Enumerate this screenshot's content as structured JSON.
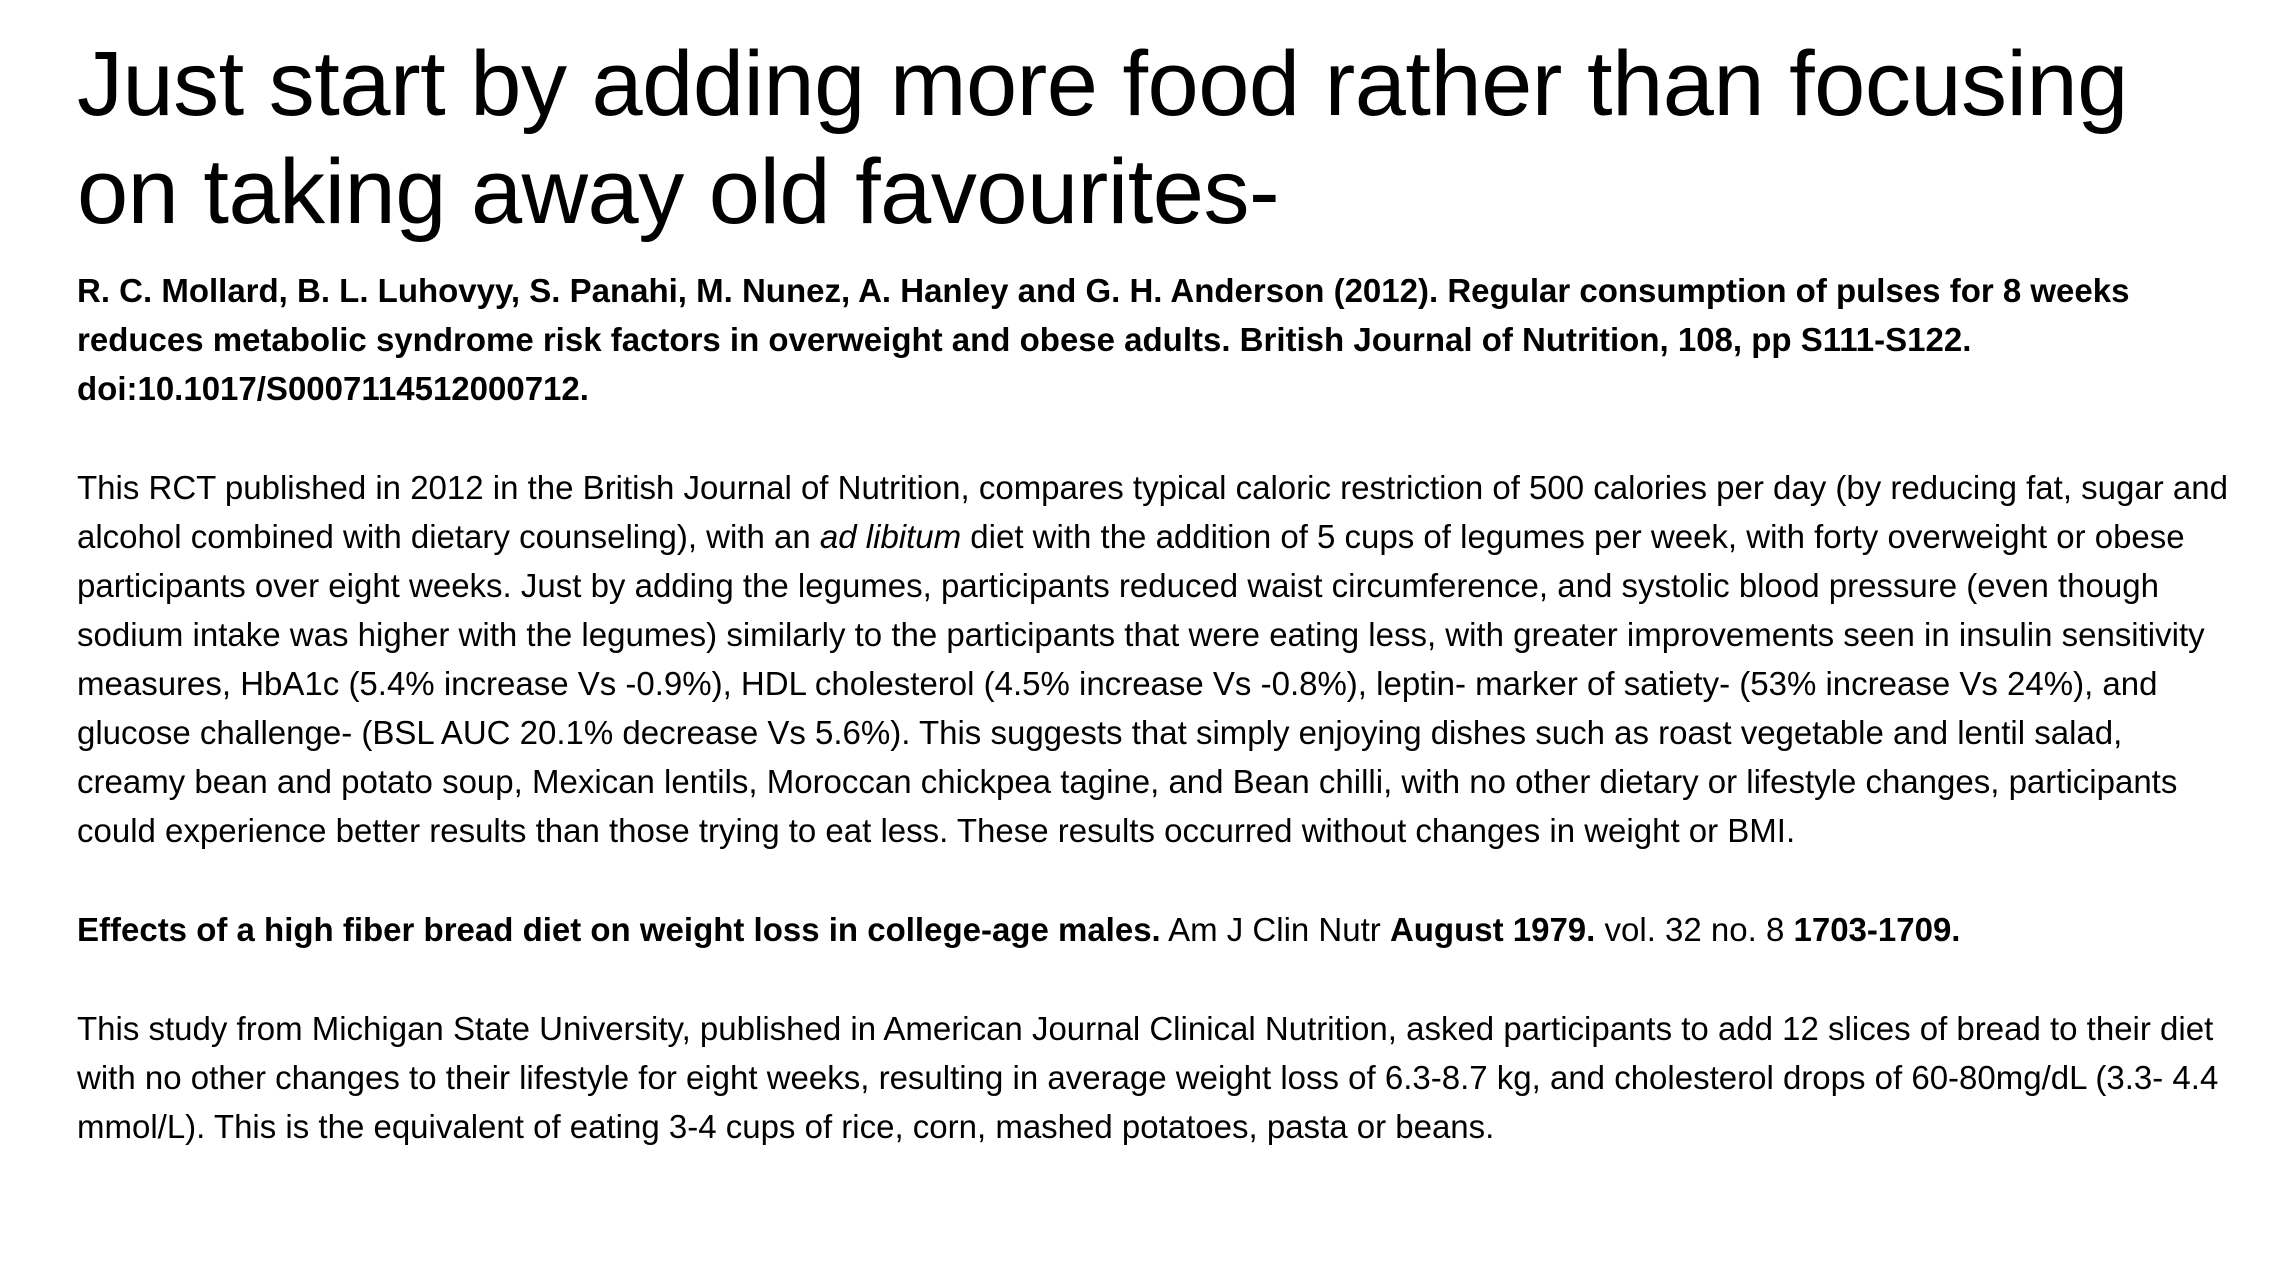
{
  "title": "Just start by adding more food rather than focusing on taking away old favourites-",
  "reference1": "R. C. Mollard, B. L. Luhovyy, S. Panahi, M. Nunez, A. Hanley and G. H. Anderson (2012). Regular consumption of pulses for 8 weeks reduces metabolic syndrome risk factors in overweight and obese adults. British Journal of Nutrition, 108, pp S111-S122. doi:10.1017/S0007114512000712.",
  "paragraph1": {
    "before": "This RCT published in 2012 in the British Journal of Nutrition, compares typical caloric restriction of 500 calories per day (by reducing fat, sugar and alcohol combined with dietary counseling), with an ",
    "italic": "ad libitum",
    "after": " diet with the addition of 5 cups of legumes per week, with forty overweight or obese participants over eight weeks. Just by adding the legumes, participants reduced waist circumference, and systolic blood pressure (even though sodium intake was higher with the legumes) similarly to the participants that were eating less, with greater improvements seen in insulin sensitivity measures, HbA1c (5.4% increase Vs -0.9%), HDL cholesterol (4.5% increase Vs -0.8%), leptin- marker of satiety- (53% increase Vs 24%), and glucose challenge- (BSL AUC 20.1% decrease Vs 5.6%). This suggests that simply enjoying dishes such as roast vegetable and lentil salad, creamy bean and potato soup, Mexican lentils, Moroccan chickpea tagine, and Bean chilli, with no other dietary or lifestyle changes, participants could experience better results than those trying to eat less. These results occurred without changes in weight or BMI."
  },
  "reference2": {
    "title": "Effects of a high fiber bread diet on weight loss in college-age males.",
    "journal": " Am J Clin Nutr ",
    "date": "August 1979.",
    "volume": " vol. 32 no. 8 ",
    "pages": "1703-1709."
  },
  "paragraph2": "This study from Michigan State University, published in American Journal Clinical Nutrition, asked participants to add 12 slices of bread to their diet with no other changes to their lifestyle for eight weeks, resulting in average weight loss of 6.3-8.7 kg, and cholesterol drops of 60-80mg/dL (3.3- 4.4 mmol/L). This is the equivalent of eating 3-4 cups of rice, corn, mashed potatoes, pasta or beans."
}
